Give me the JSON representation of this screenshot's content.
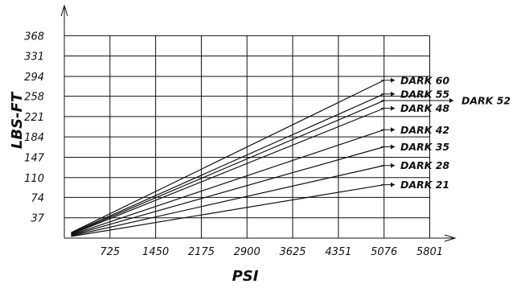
{
  "chart_data": {
    "type": "line",
    "xlabel": "PSI",
    "ylabel": "LBS-FT",
    "x_ticks": [
      725,
      1450,
      2175,
      2900,
      3625,
      4351,
      5076,
      5801
    ],
    "y_ticks": [
      37,
      74,
      110,
      147,
      184,
      221,
      258,
      294,
      331,
      368
    ],
    "xlim": [
      0,
      5801
    ],
    "ylim": [
      0,
      368
    ],
    "grid": true,
    "legend": "inline-right-arrows",
    "series": [
      {
        "name": "DARK 60",
        "x": [
          108,
          5076
        ],
        "y": [
          10,
          287
        ]
      },
      {
        "name": "DARK 55",
        "x": [
          108,
          5076
        ],
        "y": [
          9,
          262
        ]
      },
      {
        "name": "DARK 52",
        "x": [
          108,
          5076
        ],
        "y": [
          8,
          250
        ]
      },
      {
        "name": "DARK 48",
        "x": [
          108,
          5076
        ],
        "y": [
          7,
          236
        ]
      },
      {
        "name": "DARK 42",
        "x": [
          108,
          5076
        ],
        "y": [
          6,
          197
        ]
      },
      {
        "name": "DARK 35",
        "x": [
          108,
          5076
        ],
        "y": [
          5,
          166
        ]
      },
      {
        "name": "DARK 28",
        "x": [
          108,
          5076
        ],
        "y": [
          4,
          132
        ]
      },
      {
        "name": "DARK 21",
        "x": [
          108,
          5076
        ],
        "y": [
          3,
          97
        ]
      }
    ]
  }
}
